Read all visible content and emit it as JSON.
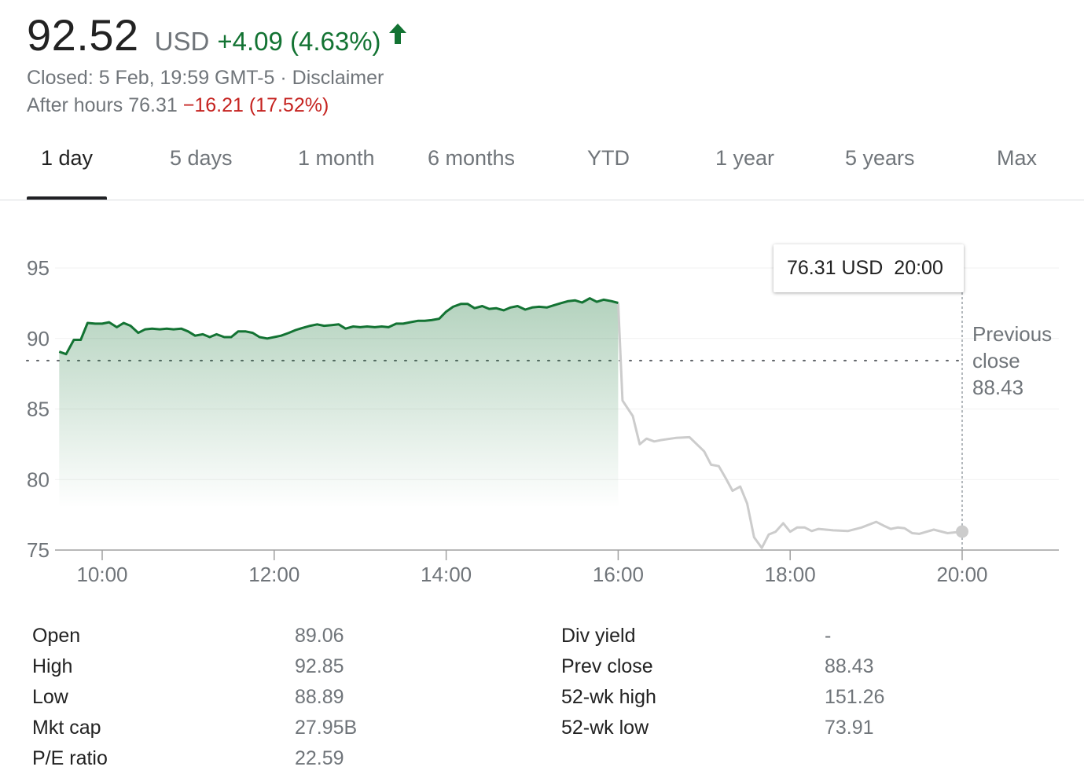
{
  "quote": {
    "price": "92.52",
    "currency": "USD",
    "change": "+4.09 (4.63%)",
    "status": "Closed: 5 Feb, 19:59 GMT-5",
    "separator": " · ",
    "disclaimer": "Disclaimer",
    "after_hours_label": "After hours 76.31",
    "after_hours_change": "−16.21 (17.52%)"
  },
  "colors": {
    "positive": "#137333",
    "negative": "#c5221f",
    "after_hours_line": "#cccccc"
  },
  "tabs": [
    "1 day",
    "5 days",
    "1 month",
    "6 months",
    "YTD",
    "1 year",
    "5 years",
    "Max"
  ],
  "active_tab": "1 day",
  "tooltip": {
    "price": "76.31 USD",
    "time": "20:00"
  },
  "previous_close": {
    "line1": "Previous",
    "line2": "close",
    "value": "88.43"
  },
  "chart_data": {
    "type": "line",
    "y_ticks": [
      "95",
      "90",
      "85",
      "80",
      "75"
    ],
    "x_ticks": [
      "10:00",
      "12:00",
      "14:00",
      "16:00",
      "18:00",
      "20:00"
    ],
    "ylim": [
      75,
      97
    ],
    "xlim_hours": [
      9.5,
      21.13
    ],
    "previous_close": 88.43,
    "series": [
      {
        "session": "regular",
        "x": [
          9.5,
          9.58,
          9.67,
          9.75,
          9.83,
          9.92,
          10.0,
          10.08,
          10.17,
          10.25,
          10.33,
          10.42,
          10.5,
          10.58,
          10.67,
          10.75,
          10.83,
          10.92,
          11.0,
          11.08,
          11.17,
          11.25,
          11.33,
          11.42,
          11.5,
          11.58,
          11.67,
          11.75,
          11.83,
          11.92,
          12.0,
          12.08,
          12.17,
          12.25,
          12.33,
          12.42,
          12.5,
          12.58,
          12.67,
          12.75,
          12.83,
          12.92,
          13.0,
          13.08,
          13.17,
          13.25,
          13.33,
          13.42,
          13.5,
          13.58,
          13.67,
          13.75,
          13.83,
          13.92,
          14.0,
          14.08,
          14.17,
          14.25,
          14.33,
          14.42,
          14.5,
          14.58,
          14.67,
          14.75,
          14.83,
          14.92,
          15.0,
          15.08,
          15.17,
          15.25,
          15.33,
          15.42,
          15.5,
          15.58,
          15.67,
          15.75,
          15.83,
          15.92,
          16.0
        ],
        "y": [
          89.06,
          88.89,
          89.9,
          89.9,
          91.1,
          91.05,
          91.05,
          91.15,
          90.8,
          91.1,
          90.9,
          90.4,
          90.65,
          90.7,
          90.65,
          90.7,
          90.65,
          90.7,
          90.5,
          90.2,
          90.3,
          90.1,
          90.3,
          90.1,
          90.1,
          90.5,
          90.5,
          90.4,
          90.1,
          90.0,
          90.1,
          90.2,
          90.4,
          90.6,
          90.75,
          90.9,
          91.0,
          90.9,
          90.95,
          91.0,
          90.7,
          90.85,
          90.8,
          90.85,
          90.8,
          90.85,
          90.8,
          91.05,
          91.05,
          91.15,
          91.25,
          91.25,
          91.3,
          91.4,
          91.9,
          92.25,
          92.45,
          92.45,
          92.15,
          92.3,
          92.1,
          92.15,
          92.0,
          92.2,
          92.3,
          92.05,
          92.2,
          92.25,
          92.2,
          92.35,
          92.5,
          92.65,
          92.7,
          92.55,
          92.85,
          92.6,
          92.75,
          92.65,
          92.52
        ]
      },
      {
        "session": "after-hours",
        "x": [
          16.0,
          16.05,
          16.17,
          16.25,
          16.33,
          16.42,
          16.5,
          16.67,
          16.83,
          17.0,
          17.08,
          17.17,
          17.25,
          17.33,
          17.42,
          17.5,
          17.58,
          17.67,
          17.75,
          17.83,
          17.92,
          18.0,
          18.08,
          18.17,
          18.25,
          18.33,
          18.5,
          18.67,
          18.83,
          19.0,
          19.08,
          19.17,
          19.25,
          19.33,
          19.42,
          19.5,
          19.67,
          19.83,
          20.0
        ],
        "y": [
          92.52,
          85.6,
          84.5,
          82.5,
          82.9,
          82.7,
          82.8,
          82.95,
          83.0,
          82.0,
          81.05,
          80.95,
          80.1,
          79.2,
          79.5,
          78.3,
          75.9,
          75.15,
          76.1,
          76.3,
          76.9,
          76.3,
          76.6,
          76.6,
          76.35,
          76.5,
          76.4,
          76.35,
          76.6,
          77.0,
          76.75,
          76.5,
          76.6,
          76.55,
          76.2,
          76.15,
          76.45,
          76.2,
          76.31
        ]
      }
    ]
  },
  "stats": {
    "left": [
      {
        "label": "Open",
        "value": "89.06"
      },
      {
        "label": "High",
        "value": "92.85"
      },
      {
        "label": "Low",
        "value": "88.89"
      },
      {
        "label": "Mkt cap",
        "value": "27.95B"
      },
      {
        "label": "P/E ratio",
        "value": "22.59"
      }
    ],
    "right": [
      {
        "label": "Div yield",
        "value": "-"
      },
      {
        "label": "Prev close",
        "value": "88.43"
      },
      {
        "label": "52-wk high",
        "value": "151.26"
      },
      {
        "label": "52-wk low",
        "value": "73.91"
      }
    ]
  }
}
